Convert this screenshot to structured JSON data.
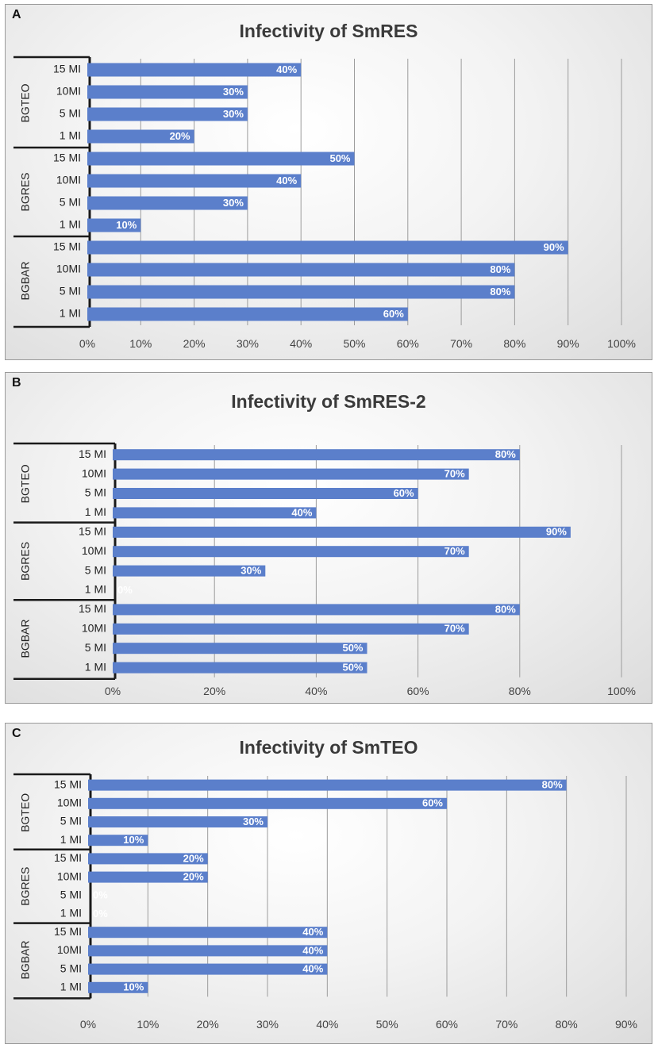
{
  "chart_data": [
    {
      "type": "bar",
      "orientation": "horizontal",
      "panel_label": "A",
      "title": "Infectivity of SmRES",
      "groups": [
        {
          "name": "BGTEO",
          "categories": [
            "15 MI",
            "10MI",
            "5 MI",
            "1 MI"
          ],
          "values": [
            40,
            30,
            30,
            20
          ],
          "labels": [
            "40%",
            "30%",
            "30%",
            "20%"
          ]
        },
        {
          "name": "BGRES",
          "categories": [
            "15 MI",
            "10MI",
            "5 MI",
            "1 MI"
          ],
          "values": [
            50,
            40,
            30,
            10
          ],
          "labels": [
            "50%",
            "40%",
            "30%",
            "10%"
          ]
        },
        {
          "name": "BGBAR",
          "categories": [
            "15 MI",
            "10MI",
            "5 MI",
            "1 MI"
          ],
          "values": [
            90,
            80,
            80,
            60
          ],
          "labels": [
            "90%",
            "80%",
            "80%",
            "60%"
          ]
        }
      ],
      "xlim": [
        0,
        100
      ],
      "xticks": [
        0,
        10,
        20,
        30,
        40,
        50,
        60,
        70,
        80,
        90,
        100
      ],
      "xtick_labels": [
        "0%",
        "10%",
        "20%",
        "30%",
        "40%",
        "50%",
        "60%",
        "70%",
        "80%",
        "90%",
        "100%"
      ],
      "bar_color": "#5b7fcb",
      "grid": true
    },
    {
      "type": "bar",
      "orientation": "horizontal",
      "panel_label": "B",
      "title": "Infectivity of SmRES-2",
      "groups": [
        {
          "name": "BGTEO",
          "categories": [
            "15 MI",
            "10MI",
            "5 MI",
            "1 MI"
          ],
          "values": [
            80,
            70,
            60,
            40
          ],
          "labels": [
            "80%",
            "70%",
            "60%",
            "40%"
          ]
        },
        {
          "name": "BGRES",
          "categories": [
            "15 MI",
            "10MI",
            "5 MI",
            "1 MI"
          ],
          "values": [
            90,
            70,
            30,
            0
          ],
          "labels": [
            "90%",
            "70%",
            "30%",
            "0%"
          ]
        },
        {
          "name": "BGBAR",
          "categories": [
            "15 MI",
            "10MI",
            "5 MI",
            "1 MI"
          ],
          "values": [
            80,
            70,
            50,
            50
          ],
          "labels": [
            "80%",
            "70%",
            "50%",
            "50%"
          ]
        }
      ],
      "xlim": [
        0,
        100
      ],
      "xticks": [
        0,
        20,
        40,
        60,
        80,
        100
      ],
      "xtick_labels": [
        "0%",
        "20%",
        "40%",
        "60%",
        "80%",
        "100%"
      ],
      "bar_color": "#5b7fcb",
      "grid": true
    },
    {
      "type": "bar",
      "orientation": "horizontal",
      "panel_label": "C",
      "title": "Infectivity of SmTEO",
      "groups": [
        {
          "name": "BGTEO",
          "categories": [
            "15 MI",
            "10MI",
            "5 MI",
            "1 MI"
          ],
          "values": [
            80,
            60,
            30,
            10
          ],
          "labels": [
            "80%",
            "60%",
            "30%",
            "10%"
          ]
        },
        {
          "name": "BGRES",
          "categories": [
            "15 MI",
            "10MI",
            "5 MI",
            "1 MI"
          ],
          "values": [
            20,
            20,
            0,
            0
          ],
          "labels": [
            "20%",
            "20%",
            "0%",
            "0%"
          ]
        },
        {
          "name": "BGBAR",
          "categories": [
            "15 MI",
            "10MI",
            "5 MI",
            "1 MI"
          ],
          "values": [
            40,
            40,
            40,
            10
          ],
          "labels": [
            "40%",
            "40%",
            "40%",
            "10%"
          ]
        }
      ],
      "xlim": [
        0,
        90
      ],
      "xticks": [
        0,
        10,
        20,
        30,
        40,
        50,
        60,
        70,
        80,
        90
      ],
      "xtick_labels": [
        "0%",
        "10%",
        "20%",
        "30%",
        "40%",
        "50%",
        "60%",
        "70%",
        "80%",
        "90%"
      ],
      "bar_color": "#5b7fcb",
      "grid": true
    }
  ]
}
